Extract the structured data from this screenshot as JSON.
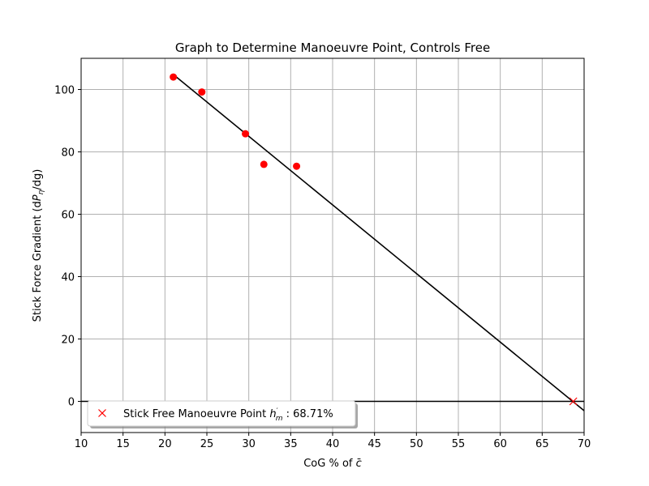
{
  "chart_data": {
    "type": "scatter",
    "title": "Graph to Determine Manoeuvre Point, Controls Free",
    "xlabel": {
      "prefix": "CoG % of ",
      "symbol": "c",
      "symbol_accent": "̄"
    },
    "ylabel": {
      "prefix": "Stick Force Gradient (d",
      "symbol": "P",
      "subscript": "η",
      "suffix": "/dg)"
    },
    "xlim": [
      10,
      70
    ],
    "ylim": [
      -10,
      110
    ],
    "xticks": [
      10,
      15,
      20,
      25,
      30,
      35,
      40,
      45,
      50,
      55,
      60,
      65,
      70
    ],
    "yticks": [
      0,
      20,
      40,
      60,
      80,
      100
    ],
    "grid": true,
    "series": [
      {
        "kind": "points",
        "marker": "circle",
        "color": "#ff0000",
        "x": [
          21.0,
          24.4,
          29.6,
          31.8,
          35.7
        ],
        "y": [
          104.0,
          99.2,
          85.8,
          76.0,
          75.4
        ]
      },
      {
        "kind": "line",
        "color": "#000000",
        "x": [
          21.0,
          70.0
        ],
        "y": [
          104.8,
          -3.0
        ]
      },
      {
        "kind": "line",
        "color": "#000000",
        "x": [
          10.0,
          70.0
        ],
        "y": [
          0.0,
          0.0
        ]
      },
      {
        "name": "Stick Free Manoeuvre Point",
        "kind": "points",
        "marker": "x",
        "color": "#ff0000",
        "x": [
          68.71
        ],
        "y": [
          0.0
        ]
      }
    ],
    "legend": {
      "placement": "lower-left",
      "label_prefix": "Stick Free Manoeuvre Point ",
      "symbol": "h",
      "symbol_subscript": "m",
      "symbol_prime": "′",
      "label_suffix": " : 68.71%"
    }
  }
}
